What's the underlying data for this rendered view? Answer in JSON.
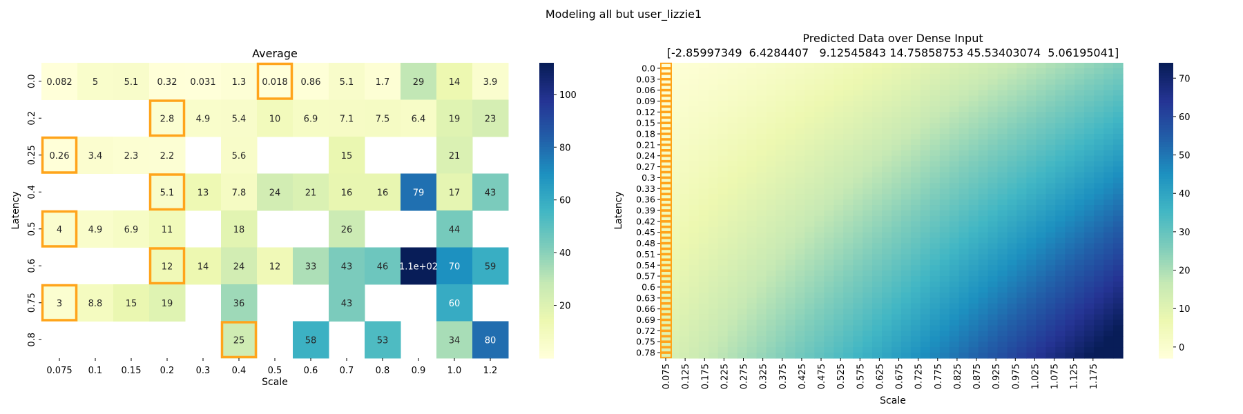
{
  "figure": {
    "suptitle": "Modeling all but user_lizzie1"
  },
  "chart_data": [
    {
      "type": "heatmap",
      "title": "Average",
      "xlabel": "Scale",
      "ylabel": "Latency",
      "x": [
        "0.075",
        "0.1",
        "0.15",
        "0.2",
        "0.3",
        "0.4",
        "0.5",
        "0.6",
        "0.7",
        "0.8",
        "0.9",
        "1.0",
        "1.2"
      ],
      "y": [
        "0.0",
        "0.2",
        "0.25",
        "0.4",
        "0.5",
        "0.6",
        "0.75",
        "0.8"
      ],
      "cells": [
        [
          "0.082",
          "5",
          "5.1",
          "0.32",
          "0.031",
          "1.3",
          "0.018",
          "0.86",
          "5.1",
          "1.7",
          "29",
          "14",
          "3.9"
        ],
        [
          "",
          "",
          "",
          "2.8",
          "4.9",
          "5.4",
          "10",
          "6.9",
          "7.1",
          "7.5",
          "6.4",
          "19",
          "23"
        ],
        [
          "0.26",
          "3.4",
          "2.3",
          "2.2",
          "",
          "5.6",
          "",
          "",
          "15",
          "",
          "",
          "21",
          ""
        ],
        [
          "",
          "",
          "",
          "5.1",
          "13",
          "7.8",
          "24",
          "21",
          "16",
          "16",
          "79",
          "17",
          "43"
        ],
        [
          "4",
          "4.9",
          "6.9",
          "11",
          "",
          "18",
          "",
          "",
          "26",
          "",
          "",
          "44",
          ""
        ],
        [
          "",
          "",
          "",
          "12",
          "14",
          "24",
          "12",
          "33",
          "43",
          "46",
          "1.1e+02",
          "70",
          "59"
        ],
        [
          "3",
          "8.8",
          "15",
          "19",
          "",
          "36",
          "",
          "",
          "43",
          "",
          "",
          "60",
          ""
        ],
        [
          "",
          "",
          "",
          "",
          "",
          "25",
          "",
          "58",
          "",
          "53",
          "",
          "34",
          "80"
        ]
      ],
      "values": [
        [
          0.082,
          5,
          5.1,
          0.32,
          0.031,
          1.3,
          0.018,
          0.86,
          5.1,
          1.7,
          29,
          14,
          3.9
        ],
        [
          null,
          null,
          null,
          2.8,
          4.9,
          5.4,
          10,
          6.9,
          7.1,
          7.5,
          6.4,
          19,
          23
        ],
        [
          0.26,
          3.4,
          2.3,
          2.2,
          null,
          5.6,
          null,
          null,
          15,
          null,
          null,
          21,
          null
        ],
        [
          null,
          null,
          null,
          5.1,
          13,
          7.8,
          24,
          21,
          16,
          16,
          79,
          17,
          43
        ],
        [
          4,
          4.9,
          6.9,
          11,
          null,
          18,
          null,
          null,
          26,
          null,
          null,
          44,
          null
        ],
        [
          null,
          null,
          null,
          12,
          14,
          24,
          12,
          33,
          43,
          46,
          112,
          70,
          59
        ],
        [
          3,
          8.8,
          15,
          19,
          null,
          36,
          null,
          null,
          43,
          null,
          null,
          60,
          null
        ],
        [
          null,
          null,
          null,
          null,
          null,
          25,
          null,
          58,
          null,
          53,
          null,
          34,
          80
        ]
      ],
      "highlighted_cells": [
        [
          0,
          6
        ],
        [
          1,
          3
        ],
        [
          2,
          0
        ],
        [
          3,
          3
        ],
        [
          4,
          0
        ],
        [
          5,
          3
        ],
        [
          6,
          0
        ],
        [
          7,
          5
        ]
      ],
      "highlight_color": "#ffa41b",
      "colormap": "YlGnBu",
      "vmin": 0,
      "vmax": 112,
      "colorbar_ticks": [
        "20",
        "40",
        "60",
        "80",
        "100"
      ]
    },
    {
      "type": "heatmap",
      "title": "Predicted Data over Dense Input",
      "subtitle": "[-2.85997349  6.4284407   9.12545843 14.75858753 45.53403074  5.06195041]",
      "xlabel": "Scale",
      "ylabel": "Latency",
      "coefficients": [
        -2.85997349,
        6.4284407,
        9.12545843,
        14.75858753,
        45.53403074,
        5.06195041
      ],
      "x_ticks": [
        "0.075",
        "0.125",
        "0.175",
        "0.225",
        "0.275",
        "0.325",
        "0.375",
        "0.425",
        "0.475",
        "0.525",
        "0.575",
        "0.625",
        "0.675",
        "0.725",
        "0.775",
        "0.825",
        "0.875",
        "0.925",
        "0.975",
        "1.025",
        "1.075",
        "1.125",
        "1.175"
      ],
      "y_ticks": [
        "0.0",
        "0.03",
        "0.06",
        "0.09",
        "0.12",
        "0.15",
        "0.18",
        "0.21",
        "0.24",
        "0.27",
        "0.3",
        "0.33",
        "0.36",
        "0.39",
        "0.42",
        "0.45",
        "0.48",
        "0.51",
        "0.54",
        "0.57",
        "0.6",
        "0.63",
        "0.66",
        "0.69",
        "0.72",
        "0.75",
        "0.78"
      ],
      "x_range": [
        0.075,
        1.2
      ],
      "y_range": [
        0.0,
        0.8
      ],
      "highlight_column": 0,
      "highlight_color": "#ffa41b",
      "colormap": "YlGnBu",
      "vmin": -2.9,
      "vmax": 74,
      "colorbar_ticks": [
        "0",
        "10",
        "20",
        "30",
        "40",
        "50",
        "60",
        "70"
      ]
    }
  ]
}
